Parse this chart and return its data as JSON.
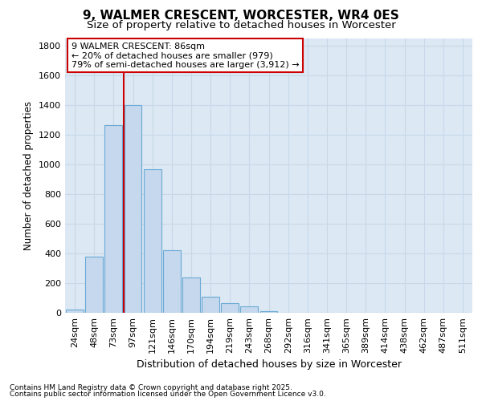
{
  "title": "9, WALMER CRESCENT, WORCESTER, WR4 0ES",
  "subtitle": "Size of property relative to detached houses in Worcester",
  "xlabel": "Distribution of detached houses by size in Worcester",
  "ylabel": "Number of detached properties",
  "categories": [
    "24sqm",
    "48sqm",
    "73sqm",
    "97sqm",
    "121sqm",
    "146sqm",
    "170sqm",
    "194sqm",
    "219sqm",
    "243sqm",
    "268sqm",
    "292sqm",
    "316sqm",
    "341sqm",
    "365sqm",
    "389sqm",
    "414sqm",
    "438sqm",
    "462sqm",
    "487sqm",
    "511sqm"
  ],
  "values": [
    20,
    380,
    1265,
    1400,
    965,
    420,
    235,
    110,
    65,
    45,
    10,
    2,
    1,
    0,
    0,
    0,
    0,
    0,
    0,
    0,
    0
  ],
  "bar_color": "#c5d8ed",
  "bar_edge_color": "#6aaad4",
  "vline_color": "#cc0000",
  "annotation_box_text": "9 WALMER CRESCENT: 86sqm\n← 20% of detached houses are smaller (979)\n79% of semi-detached houses are larger (3,912) →",
  "annotation_box_color": "#cc0000",
  "ylim": [
    0,
    1850
  ],
  "yticks": [
    0,
    200,
    400,
    600,
    800,
    1000,
    1200,
    1400,
    1600,
    1800
  ],
  "grid_color": "#c8d8e8",
  "background_color": "#dce8f4",
  "footer_line1": "Contains HM Land Registry data © Crown copyright and database right 2025.",
  "footer_line2": "Contains public sector information licensed under the Open Government Licence v3.0.",
  "title_fontsize": 11,
  "subtitle_fontsize": 9.5,
  "xlabel_fontsize": 9,
  "ylabel_fontsize": 8.5,
  "tick_fontsize": 8,
  "footer_fontsize": 6.5,
  "annot_fontsize": 8
}
